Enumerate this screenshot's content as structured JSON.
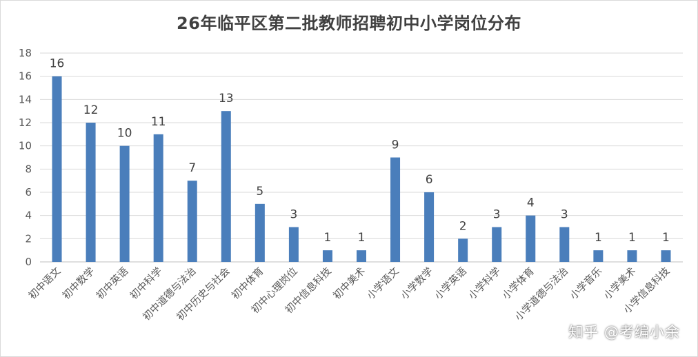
{
  "chart_data": {
    "type": "bar",
    "title": "26年临平区第二批教师招聘初中小学岗位分布",
    "xlabel": "",
    "ylabel": "",
    "categories": [
      "初中语文",
      "初中数学",
      "初中英语",
      "初中科学",
      "初中道德与法治",
      "初中历史与社会",
      "初中体育",
      "初中心理岗位",
      "初中信息科技",
      "初中美术",
      "小学语文",
      "小学数学",
      "小学英语",
      "小学科学",
      "小学体育",
      "小学道德与法治",
      "小学音乐",
      "小学美术",
      "小学信息科技"
    ],
    "values": [
      16,
      12,
      10,
      11,
      7,
      13,
      5,
      3,
      1,
      1,
      9,
      6,
      2,
      3,
      4,
      3,
      1,
      1,
      1
    ],
    "ylim": [
      0,
      18
    ],
    "yticks": [
      0,
      2,
      4,
      6,
      8,
      10,
      12,
      14,
      16,
      18
    ],
    "grid": true,
    "bar_color": "#4a7ebb",
    "data_labels": true
  },
  "watermark": "知乎 @考编小余"
}
